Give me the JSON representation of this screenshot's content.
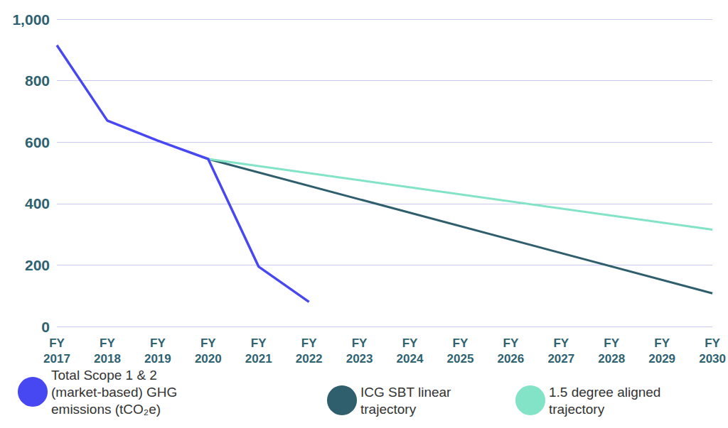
{
  "chart_data": {
    "type": "line",
    "categories": [
      "FY 2017",
      "FY 2018",
      "FY 2019",
      "FY 2020",
      "FY 2021",
      "FY 2022",
      "FY 2023",
      "FY 2024",
      "FY 2025",
      "FY 2026",
      "FY 2027",
      "FY 2028",
      "FY 2029",
      "FY 2030"
    ],
    "series": [
      {
        "name": "Total Scope 1 & 2 (market-based) GHG emissions (tCO₂e)",
        "color": "#4848f2",
        "values": [
          915,
          670,
          605,
          545,
          195,
          80,
          null,
          null,
          null,
          null,
          null,
          null,
          null,
          null
        ]
      },
      {
        "name": "ICG SBT linear trajectory",
        "color": "#2f5f6c",
        "values": [
          null,
          null,
          null,
          545,
          null,
          null,
          null,
          null,
          null,
          null,
          null,
          null,
          null,
          108
        ]
      },
      {
        "name": "1.5 degree aligned trajectory",
        "color": "#82e3c6",
        "values": [
          null,
          null,
          null,
          545,
          null,
          null,
          null,
          null,
          null,
          null,
          null,
          null,
          null,
          315
        ]
      }
    ],
    "ylim": [
      0,
      1000
    ],
    "yticks": [
      0,
      200,
      400,
      600,
      800,
      {
        "value": 1000,
        "label": "1,000"
      }
    ],
    "grid": true,
    "legend": "bottom"
  }
}
